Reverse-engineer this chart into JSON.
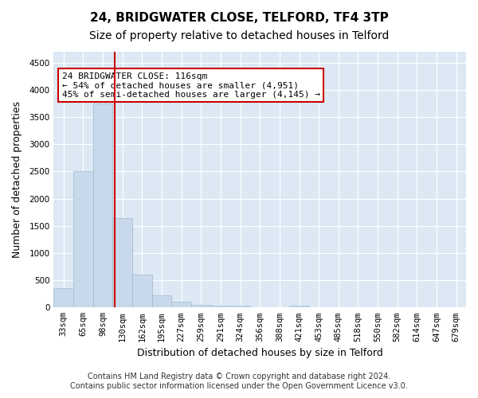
{
  "title1": "24, BRIDGWATER CLOSE, TELFORD, TF4 3TP",
  "title2": "Size of property relative to detached houses in Telford",
  "xlabel": "Distribution of detached houses by size in Telford",
  "ylabel": "Number of detached properties",
  "categories": [
    "33sqm",
    "65sqm",
    "98sqm",
    "130sqm",
    "162sqm",
    "195sqm",
    "227sqm",
    "259sqm",
    "291sqm",
    "324sqm",
    "356sqm",
    "388sqm",
    "421sqm",
    "453sqm",
    "485sqm",
    "518sqm",
    "550sqm",
    "582sqm",
    "614sqm",
    "647sqm",
    "679sqm"
  ],
  "values": [
    350,
    2500,
    3750,
    1650,
    600,
    230,
    110,
    55,
    30,
    30,
    0,
    0,
    30,
    0,
    0,
    0,
    0,
    0,
    0,
    0,
    0
  ],
  "bar_color": "#c9d9ec",
  "bar_edge_color": "#a0b8d0",
  "vline_x": 2.6,
  "vline_color": "#cc0000",
  "annotation_text": "24 BRIDGWATER CLOSE: 116sqm\n← 54% of detached houses are smaller (4,951)\n45% of semi-detached houses are larger (4,145) →",
  "annotation_box_color": "white",
  "annotation_box_edge": "#cc0000",
  "ylim": [
    0,
    4700
  ],
  "yticks": [
    0,
    500,
    1000,
    1500,
    2000,
    2500,
    3000,
    3500,
    4000,
    4500
  ],
  "footer1": "Contains HM Land Registry data © Crown copyright and database right 2024.",
  "footer2": "Contains public sector information licensed under the Open Government Licence v3.0.",
  "bg_color": "#dce9f5",
  "plot_bg_color": "#dce9f5",
  "title1_fontsize": 11,
  "title2_fontsize": 10,
  "xlabel_fontsize": 9,
  "ylabel_fontsize": 9,
  "tick_fontsize": 7.5,
  "annotation_fontsize": 8,
  "footer_fontsize": 7
}
